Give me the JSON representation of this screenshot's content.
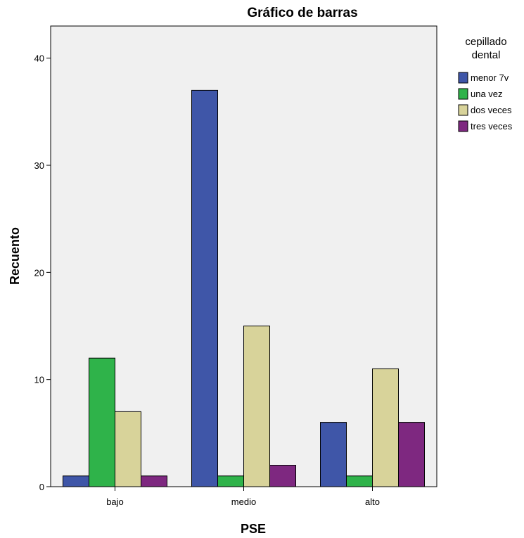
{
  "chart_data": {
    "type": "bar",
    "title": "Gráfico de barras",
    "xlabel": "PSE",
    "ylabel": "Recuento",
    "categories": [
      "bajo",
      "medio",
      "alto"
    ],
    "series": [
      {
        "name": "menor 7v",
        "values": [
          1,
          37,
          6
        ],
        "color": "#3f56a8"
      },
      {
        "name": "una vez",
        "values": [
          12,
          1,
          1
        ],
        "color": "#2fb34a"
      },
      {
        "name": "dos veces",
        "values": [
          7,
          15,
          11
        ],
        "color": "#d8d39a"
      },
      {
        "name": "tres veces",
        "values": [
          1,
          2,
          6
        ],
        "color": "#7e2880"
      }
    ],
    "ylim": [
      0,
      43
    ],
    "yticks": [
      0,
      10,
      20,
      30,
      40
    ],
    "legend": {
      "title": "cepillado dental",
      "title_lines": [
        "cepillado",
        "dental"
      ],
      "position": "top-right"
    },
    "grid": false,
    "plot_background": "#f0f0f0"
  }
}
